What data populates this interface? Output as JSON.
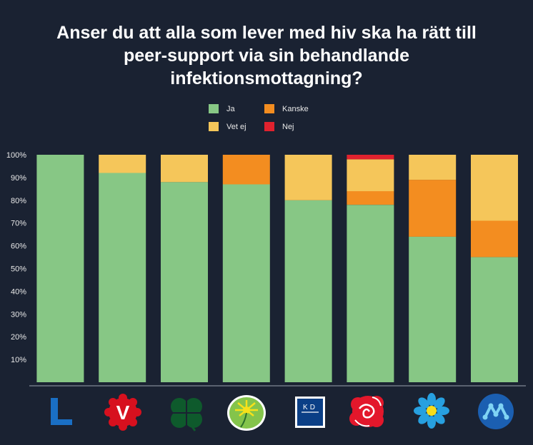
{
  "title_lines": [
    "Anser du att alla som lever med hiv ska ha rätt till",
    "peer-support via sin behandlande",
    "infektionsmottagning?"
  ],
  "colors": {
    "ja": "#87c785",
    "kanske": "#f38d20",
    "vet_ej": "#f5c65a",
    "nej": "#e0222e"
  },
  "chart_data": {
    "type": "bar",
    "stacked": true,
    "categories": [
      "L",
      "V",
      "C",
      "MP",
      "KD",
      "S",
      "SD",
      "M"
    ],
    "series": [
      {
        "name": "Ja",
        "values": [
          100,
          92,
          88,
          87,
          80,
          78,
          64,
          55
        ]
      },
      {
        "name": "Kanske",
        "values": [
          0,
          0,
          0,
          13,
          0,
          6,
          25,
          16
        ]
      },
      {
        "name": "Vet ej",
        "values": [
          0,
          8,
          12,
          0,
          20,
          14,
          11,
          29
        ]
      },
      {
        "name": "Nej",
        "values": [
          0,
          0,
          0,
          0,
          0,
          2,
          0,
          0
        ]
      }
    ],
    "ylim": [
      0,
      100
    ],
    "yticks": [
      "10%",
      "20%",
      "30%",
      "40%",
      "50%",
      "60%",
      "70%",
      "80%",
      "90%",
      "100%"
    ],
    "legend_position": "top-center"
  },
  "logos": [
    {
      "party": "L",
      "icon": "liberalerna-logo"
    },
    {
      "party": "V",
      "icon": "vansterpartiet-logo",
      "text": "V"
    },
    {
      "party": "C",
      "icon": "centerpartiet-clover-logo"
    },
    {
      "party": "MP",
      "icon": "miljopartiet-dandelion-logo"
    },
    {
      "party": "KD",
      "icon": "kristdemokraterna-logo",
      "text": "KD"
    },
    {
      "party": "S",
      "icon": "socialdemokraterna-rose-logo"
    },
    {
      "party": "SD",
      "icon": "sverigedemokraterna-flower-logo"
    },
    {
      "party": "M",
      "icon": "moderaterna-logo"
    }
  ]
}
